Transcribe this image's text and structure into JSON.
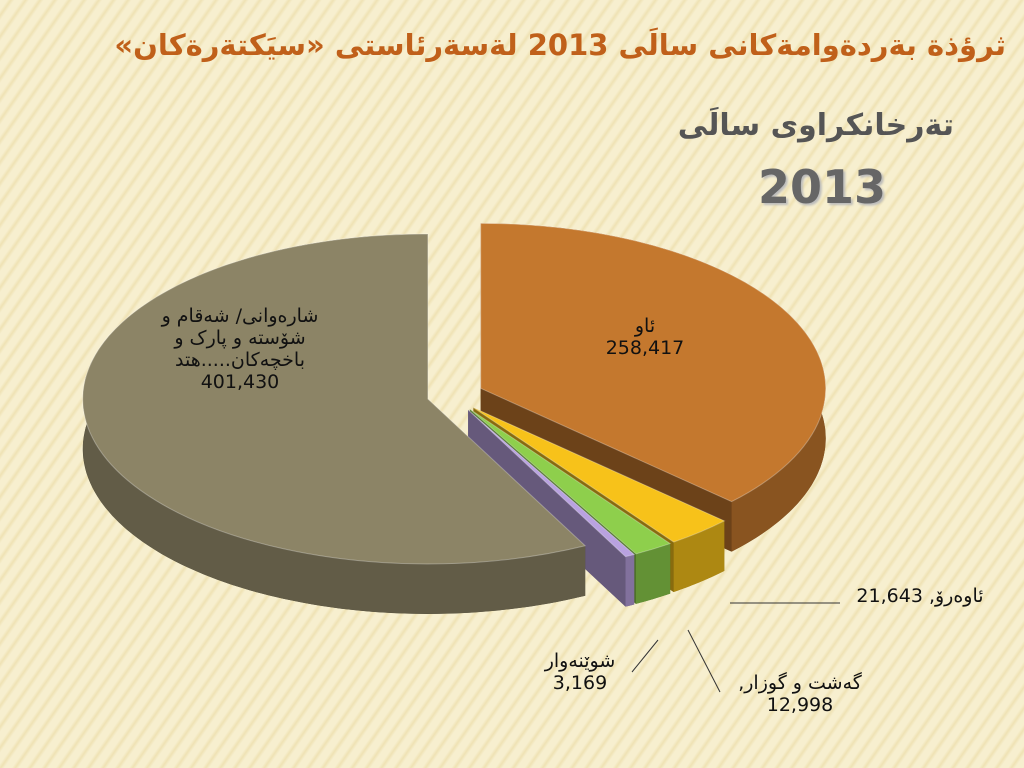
{
  "chart_data": {
    "type": "pie",
    "title": "ثرؤذة بةردةوامةكانى سالَى 2013 لةسةرئاستى «سيَكتةرةكان»",
    "subtitle": "تةرخانكراوى سالَى",
    "year_label": "2013",
    "categories": [
      "ئاو",
      "ئاوەرۆ,",
      "گەشت و گوزار,",
      "شوێنەوار",
      "شارەوانی/ شەقام و شۆستە و پارک و باخچەکان.....هتد"
    ],
    "values": [
      258417,
      21643,
      12998,
      3169,
      401430
    ],
    "value_labels": [
      "258,417",
      "21,643",
      "12,998",
      "3,169",
      "401,430"
    ],
    "colors": [
      "#c4782e",
      "#f7c21a",
      "#8ecf4c",
      "#b9a2e0",
      "#8c8466"
    ]
  }
}
